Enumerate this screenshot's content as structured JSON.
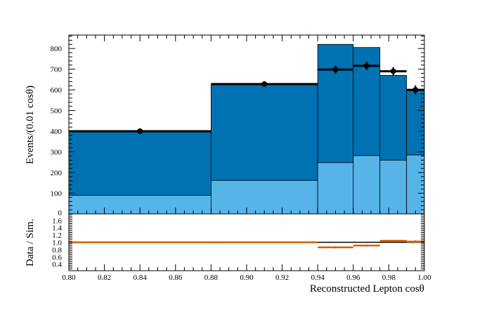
{
  "chart_data": [
    {
      "type": "bar",
      "panel": "main",
      "xlabel": "",
      "ylabel": "Events/(0.01 cosθ)",
      "xlim": [
        0.8,
        1.0
      ],
      "ylim": [
        0,
        865
      ],
      "y_ticks": [
        100,
        200,
        300,
        400,
        500,
        600,
        700,
        800
      ],
      "y_tick_labels": [
        "100",
        "200",
        "300",
        "400",
        "500",
        "600",
        "700",
        "800"
      ],
      "zero_label": "0",
      "bins": [
        {
          "x_low": 0.8,
          "x_high": 0.88
        },
        {
          "x_low": 0.88,
          "x_high": 0.94
        },
        {
          "x_low": 0.94,
          "x_high": 0.96
        },
        {
          "x_low": 0.96,
          "x_high": 0.975
        },
        {
          "x_low": 0.975,
          "x_high": 0.99
        },
        {
          "x_low": 0.99,
          "x_high": 1.0
        }
      ],
      "series": [
        {
          "kind": "stack",
          "color": "#56b4e9",
          "values": [
            90,
            162,
            248,
            282,
            260,
            285
          ]
        },
        {
          "kind": "stack",
          "color": "#0072b2",
          "values": [
            310,
            463,
            572,
            523,
            410,
            315
          ]
        },
        {
          "kind": "data",
          "color": "#000000",
          "x": [
            0.84,
            0.91,
            0.95,
            0.9675,
            0.9825,
            0.995
          ],
          "values": [
            400,
            628,
            698,
            716,
            690,
            600
          ],
          "errors": [
            10,
            8,
            20,
            20,
            20,
            22
          ]
        }
      ]
    },
    {
      "type": "line",
      "panel": "ratio",
      "xlabel": "Reconstructed Lepton cosθ",
      "ylabel": "Data / Sim.",
      "xlim": [
        0.8,
        1.0
      ],
      "ylim": [
        0.22,
        1.78
      ],
      "x_ticks": [
        0.8,
        0.82,
        0.84,
        0.86,
        0.88,
        0.9,
        0.92,
        0.94,
        0.96,
        0.98,
        1.0
      ],
      "x_tick_labels": [
        "0.80",
        "0.82",
        "0.84",
        "0.86",
        "0.88",
        "0.90",
        "0.92",
        "0.94",
        "0.96",
        "0.98",
        "1.00"
      ],
      "y_ticks": [
        0.4,
        0.6,
        0.8,
        1.0,
        1.2,
        1.4,
        1.6
      ],
      "y_tick_labels": [
        "0.4",
        "0.6",
        "0.8",
        "1.0",
        "1.2",
        "1.4",
        "1.6"
      ],
      "reference_line": 1.0,
      "series": [
        {
          "color": "#d55e00",
          "x_low": [
            0.8,
            0.88,
            0.94,
            0.96,
            0.975,
            0.99
          ],
          "x_high": [
            0.88,
            0.94,
            0.96,
            0.975,
            0.99,
            1.0
          ],
          "values": [
            1.0,
            1.0,
            0.86,
            0.91,
            1.04,
            1.02
          ],
          "errors": [
            0.02,
            0.015,
            0.03,
            0.03,
            0.03,
            0.04
          ]
        }
      ]
    }
  ]
}
